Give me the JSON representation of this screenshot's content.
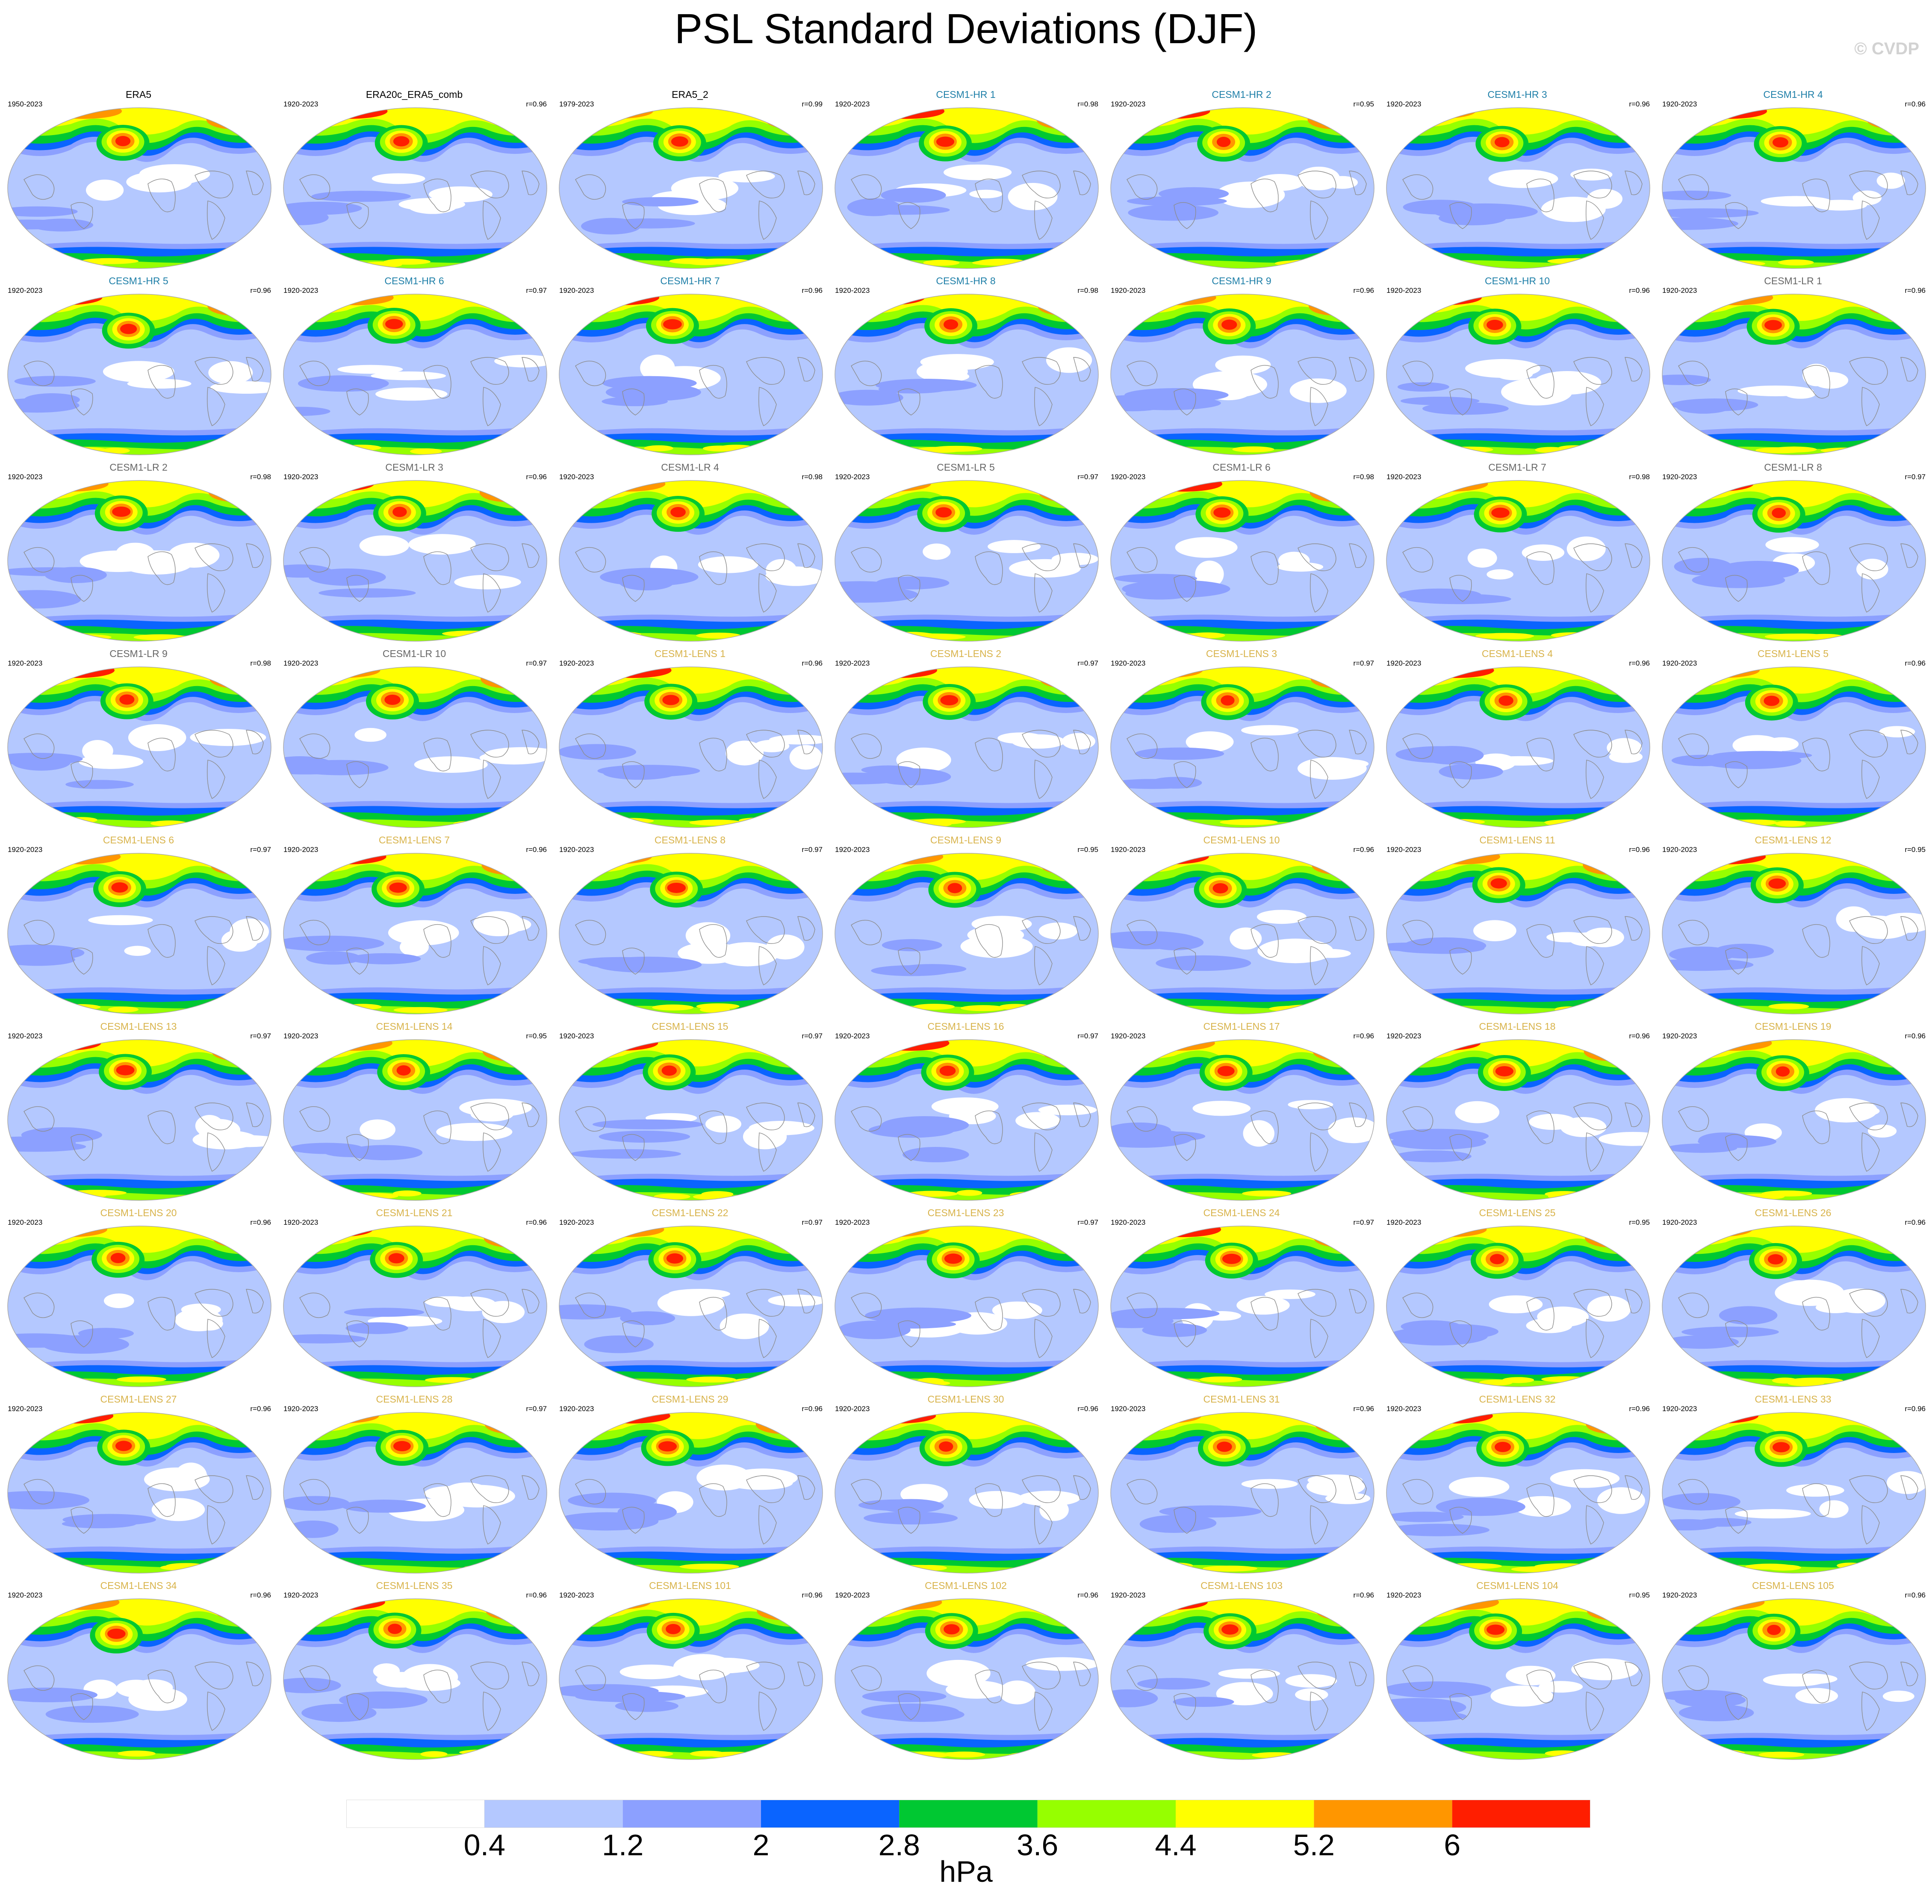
{
  "title": "PSL Standard Deviations (DJF)",
  "watermark": "© CVDP",
  "colors": {
    "obs_title": "#000000",
    "cesm1_hr_title": "#1e7fa8",
    "cesm1_lr_title": "#666666",
    "cesm1_lens_title": "#d8b34a"
  },
  "colorbar": {
    "unit": "hPa",
    "levels": [
      "0.4",
      "1.2",
      "2",
      "2.8",
      "3.6",
      "4.4",
      "5.2",
      "6"
    ],
    "colors": [
      "#ffffff",
      "#b4c8ff",
      "#8ca0ff",
      "#0a64ff",
      "#00c832",
      "#96ff00",
      "#ffff00",
      "#ff9600",
      "#ff1e00"
    ]
  },
  "panels": [
    {
      "title": "ERA5",
      "group": "obs",
      "years": "1950-2023",
      "corr": ""
    },
    {
      "title": "ERA20c_ERA5_comb",
      "group": "obs",
      "years": "1920-2023",
      "corr": "r=0.96"
    },
    {
      "title": "ERA5_2",
      "group": "obs",
      "years": "1979-2023",
      "corr": "r=0.99"
    },
    {
      "title": "CESM1-HR 1",
      "group": "hr",
      "years": "1920-2023",
      "corr": "r=0.98"
    },
    {
      "title": "CESM1-HR 2",
      "group": "hr",
      "years": "1920-2023",
      "corr": "r=0.95"
    },
    {
      "title": "CESM1-HR 3",
      "group": "hr",
      "years": "1920-2023",
      "corr": "r=0.96"
    },
    {
      "title": "CESM1-HR 4",
      "group": "hr",
      "years": "1920-2023",
      "corr": "r=0.96"
    },
    {
      "title": "CESM1-HR 5",
      "group": "hr",
      "years": "1920-2023",
      "corr": "r=0.96"
    },
    {
      "title": "CESM1-HR 6",
      "group": "hr",
      "years": "1920-2023",
      "corr": "r=0.97"
    },
    {
      "title": "CESM1-HR 7",
      "group": "hr",
      "years": "1920-2023",
      "corr": "r=0.96"
    },
    {
      "title": "CESM1-HR 8",
      "group": "hr",
      "years": "1920-2023",
      "corr": "r=0.98"
    },
    {
      "title": "CESM1-HR 9",
      "group": "hr",
      "years": "1920-2023",
      "corr": "r=0.96"
    },
    {
      "title": "CESM1-HR 10",
      "group": "hr",
      "years": "1920-2023",
      "corr": "r=0.96"
    },
    {
      "title": "CESM1-LR 1",
      "group": "lr",
      "years": "1920-2023",
      "corr": "r=0.96"
    },
    {
      "title": "CESM1-LR 2",
      "group": "lr",
      "years": "1920-2023",
      "corr": "r=0.98"
    },
    {
      "title": "CESM1-LR 3",
      "group": "lr",
      "years": "1920-2023",
      "corr": "r=0.96"
    },
    {
      "title": "CESM1-LR 4",
      "group": "lr",
      "years": "1920-2023",
      "corr": "r=0.98"
    },
    {
      "title": "CESM1-LR 5",
      "group": "lr",
      "years": "1920-2023",
      "corr": "r=0.97"
    },
    {
      "title": "CESM1-LR 6",
      "group": "lr",
      "years": "1920-2023",
      "corr": "r=0.98"
    },
    {
      "title": "CESM1-LR 7",
      "group": "lr",
      "years": "1920-2023",
      "corr": "r=0.98"
    },
    {
      "title": "CESM1-LR 8",
      "group": "lr",
      "years": "1920-2023",
      "corr": "r=0.97"
    },
    {
      "title": "CESM1-LR 9",
      "group": "lr",
      "years": "1920-2023",
      "corr": "r=0.98"
    },
    {
      "title": "CESM1-LR 10",
      "group": "lr",
      "years": "1920-2023",
      "corr": "r=0.97"
    },
    {
      "title": "CESM1-LENS 1",
      "group": "lens",
      "years": "1920-2023",
      "corr": "r=0.96"
    },
    {
      "title": "CESM1-LENS 2",
      "group": "lens",
      "years": "1920-2023",
      "corr": "r=0.97"
    },
    {
      "title": "CESM1-LENS 3",
      "group": "lens",
      "years": "1920-2023",
      "corr": "r=0.97"
    },
    {
      "title": "CESM1-LENS 4",
      "group": "lens",
      "years": "1920-2023",
      "corr": "r=0.96"
    },
    {
      "title": "CESM1-LENS 5",
      "group": "lens",
      "years": "1920-2023",
      "corr": "r=0.96"
    },
    {
      "title": "CESM1-LENS 6",
      "group": "lens",
      "years": "1920-2023",
      "corr": "r=0.97"
    },
    {
      "title": "CESM1-LENS 7",
      "group": "lens",
      "years": "1920-2023",
      "corr": "r=0.96"
    },
    {
      "title": "CESM1-LENS 8",
      "group": "lens",
      "years": "1920-2023",
      "corr": "r=0.97"
    },
    {
      "title": "CESM1-LENS 9",
      "group": "lens",
      "years": "1920-2023",
      "corr": "r=0.95"
    },
    {
      "title": "CESM1-LENS 10",
      "group": "lens",
      "years": "1920-2023",
      "corr": "r=0.96"
    },
    {
      "title": "CESM1-LENS 11",
      "group": "lens",
      "years": "1920-2023",
      "corr": "r=0.96"
    },
    {
      "title": "CESM1-LENS 12",
      "group": "lens",
      "years": "1920-2023",
      "corr": "r=0.95"
    },
    {
      "title": "CESM1-LENS 13",
      "group": "lens",
      "years": "1920-2023",
      "corr": "r=0.97"
    },
    {
      "title": "CESM1-LENS 14",
      "group": "lens",
      "years": "1920-2023",
      "corr": "r=0.95"
    },
    {
      "title": "CESM1-LENS 15",
      "group": "lens",
      "years": "1920-2023",
      "corr": "r=0.97"
    },
    {
      "title": "CESM1-LENS 16",
      "group": "lens",
      "years": "1920-2023",
      "corr": "r=0.97"
    },
    {
      "title": "CESM1-LENS 17",
      "group": "lens",
      "years": "1920-2023",
      "corr": "r=0.96"
    },
    {
      "title": "CESM1-LENS 18",
      "group": "lens",
      "years": "1920-2023",
      "corr": "r=0.96"
    },
    {
      "title": "CESM1-LENS 19",
      "group": "lens",
      "years": "1920-2023",
      "corr": "r=0.96"
    },
    {
      "title": "CESM1-LENS 20",
      "group": "lens",
      "years": "1920-2023",
      "corr": "r=0.96"
    },
    {
      "title": "CESM1-LENS 21",
      "group": "lens",
      "years": "1920-2023",
      "corr": "r=0.96"
    },
    {
      "title": "CESM1-LENS 22",
      "group": "lens",
      "years": "1920-2023",
      "corr": "r=0.97"
    },
    {
      "title": "CESM1-LENS 23",
      "group": "lens",
      "years": "1920-2023",
      "corr": "r=0.97"
    },
    {
      "title": "CESM1-LENS 24",
      "group": "lens",
      "years": "1920-2023",
      "corr": "r=0.97"
    },
    {
      "title": "CESM1-LENS 25",
      "group": "lens",
      "years": "1920-2023",
      "corr": "r=0.95"
    },
    {
      "title": "CESM1-LENS 26",
      "group": "lens",
      "years": "1920-2023",
      "corr": "r=0.96"
    },
    {
      "title": "CESM1-LENS 27",
      "group": "lens",
      "years": "1920-2023",
      "corr": "r=0.96"
    },
    {
      "title": "CESM1-LENS 28",
      "group": "lens",
      "years": "1920-2023",
      "corr": "r=0.97"
    },
    {
      "title": "CESM1-LENS 29",
      "group": "lens",
      "years": "1920-2023",
      "corr": "r=0.96"
    },
    {
      "title": "CESM1-LENS 30",
      "group": "lens",
      "years": "1920-2023",
      "corr": "r=0.96"
    },
    {
      "title": "CESM1-LENS 31",
      "group": "lens",
      "years": "1920-2023",
      "corr": "r=0.96"
    },
    {
      "title": "CESM1-LENS 32",
      "group": "lens",
      "years": "1920-2023",
      "corr": "r=0.96"
    },
    {
      "title": "CESM1-LENS 33",
      "group": "lens",
      "years": "1920-2023",
      "corr": "r=0.96"
    },
    {
      "title": "CESM1-LENS 34",
      "group": "lens",
      "years": "1920-2023",
      "corr": "r=0.96"
    },
    {
      "title": "CESM1-LENS 35",
      "group": "lens",
      "years": "1920-2023",
      "corr": "r=0.96"
    },
    {
      "title": "CESM1-LENS 101",
      "group": "lens",
      "years": "1920-2023",
      "corr": "r=0.96"
    },
    {
      "title": "CESM1-LENS 102",
      "group": "lens",
      "years": "1920-2023",
      "corr": "r=0.96"
    },
    {
      "title": "CESM1-LENS 103",
      "group": "lens",
      "years": "1920-2023",
      "corr": "r=0.96"
    },
    {
      "title": "CESM1-LENS 104",
      "group": "lens",
      "years": "1920-2023",
      "corr": "r=0.95"
    },
    {
      "title": "CESM1-LENS 105",
      "group": "lens",
      "years": "1920-2023",
      "corr": "r=0.96"
    }
  ]
}
